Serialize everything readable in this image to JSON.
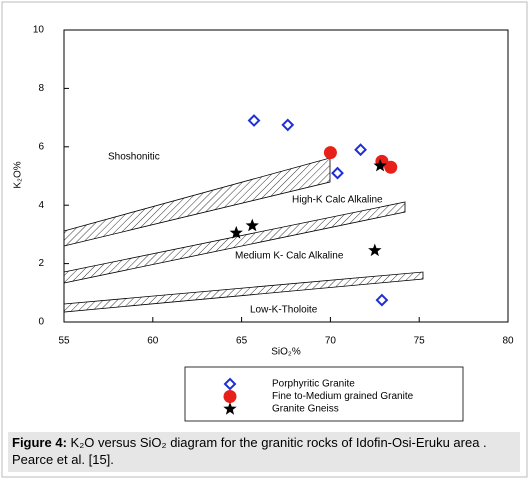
{
  "chart_data": {
    "type": "scatter",
    "xlabel": "SiO₂%",
    "ylabel": "K₂O%",
    "xlim": [
      55,
      80
    ],
    "ylim": [
      0,
      10
    ],
    "xticks": [
      55,
      60,
      65,
      70,
      75,
      80
    ],
    "yticks": [
      0,
      2,
      4,
      6,
      8,
      10
    ],
    "annotations": [
      "Shoshonitic",
      "High-K Calc Alkaline",
      "Medium K- Calc Alkaline",
      "Low-K-Tholoite"
    ],
    "series": [
      {
        "name": "Porphyritic Granite",
        "color": "#1f2fd6",
        "marker": "diamond",
        "x": [
          65.7,
          67.6,
          71.7,
          70.4,
          72.9
        ],
        "values": [
          6.9,
          6.75,
          5.9,
          5.1,
          0.75
        ]
      },
      {
        "name": "Fine to-Medium grained Granite",
        "color": "#e8201a",
        "marker": "circle",
        "x": [
          70.0,
          72.9,
          73.4
        ],
        "values": [
          5.8,
          5.5,
          5.3
        ]
      },
      {
        "name": "Granite Gneiss",
        "color": "#000000",
        "marker": "star",
        "x": [
          64.7,
          65.6,
          72.8,
          72.5
        ],
        "values": [
          3.05,
          3.3,
          5.35,
          2.45
        ]
      }
    ]
  },
  "caption": {
    "label": "Figure 4:",
    "text": " K₂O versus SiO₂ diagram for the granitic rocks of Idofin-Osi-Eruku area . Pearce et al. [15]."
  }
}
